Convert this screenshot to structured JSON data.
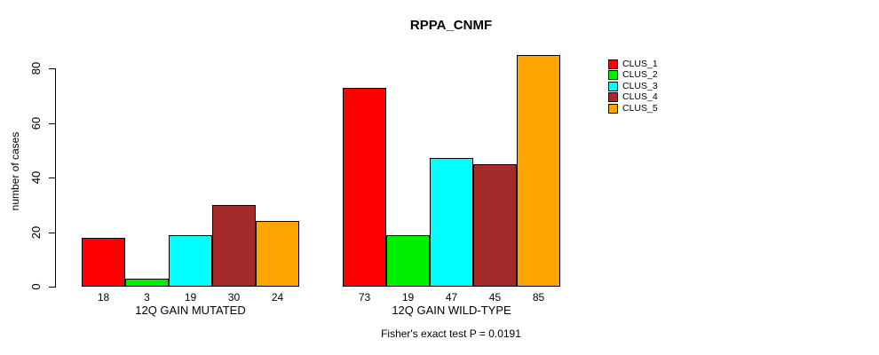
{
  "chart_data": {
    "type": "bar",
    "title": "RPPA_CNMF",
    "categories": [
      "12Q GAIN MUTATED",
      "12Q GAIN WILD-TYPE"
    ],
    "series": [
      {
        "name": "CLUS_1",
        "color": "#FF0000",
        "values": [
          18,
          73
        ]
      },
      {
        "name": "CLUS_2",
        "color": "#00EE00",
        "values": [
          3,
          19
        ]
      },
      {
        "name": "CLUS_3",
        "color": "#00FFFF",
        "values": [
          19,
          47
        ]
      },
      {
        "name": "CLUS_4",
        "color": "#A52A2A",
        "values": [
          30,
          45
        ]
      },
      {
        "name": "CLUS_5",
        "color": "#FFA500",
        "values": [
          24,
          85
        ]
      }
    ],
    "ylabel": "number of cases",
    "xlabel": "",
    "ylim": [
      0,
      85
    ],
    "yticks": [
      0,
      20,
      40,
      60,
      80
    ],
    "grid": false,
    "legend_position": "right-outside",
    "bar_value_labels_shown": true,
    "annotation": "Fisher's exact test P = 0.0191"
  }
}
